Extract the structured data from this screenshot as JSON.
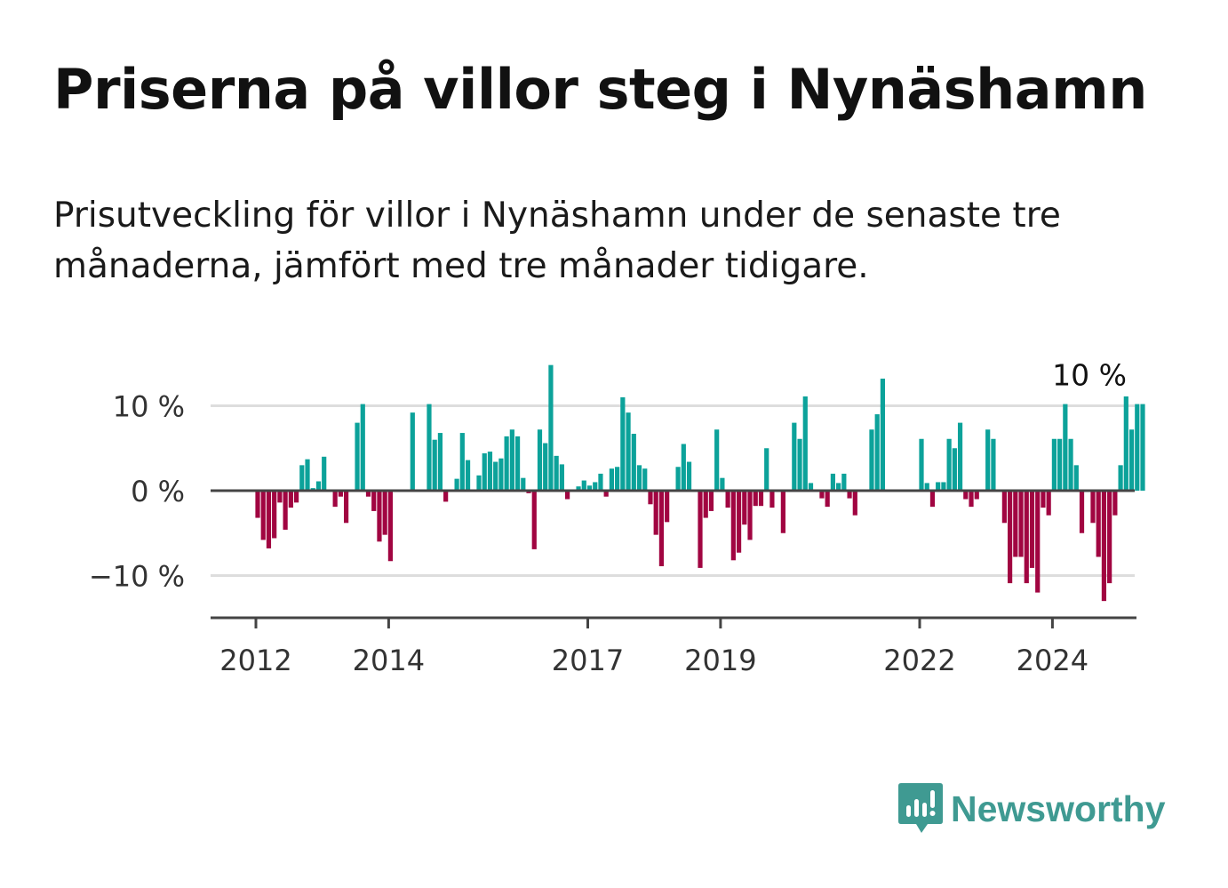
{
  "title": "Priserna på villor steg i Nynäshamn",
  "subtitle": "Prisutveckling för villor i Nynäshamn under de senaste tre månaderna, jämfört med tre månader tidigare.",
  "brand": {
    "name": "Newsworthy",
    "color": "#3f9a92",
    "icon": "newsworthy-logo-icon"
  },
  "colors": {
    "positive": "#0ca29a",
    "negative": "#a10541",
    "grid": "#dddddd",
    "axis": "#444444"
  },
  "chart_data": {
    "type": "bar",
    "title": "",
    "xlabel": "",
    "ylabel": "",
    "ylim": [
      -15,
      15
    ],
    "yticks": [
      10,
      0,
      -10
    ],
    "ytick_labels": [
      "10 %",
      "0 %",
      "−10 %"
    ],
    "xticks": [
      {
        "year": 2012,
        "label": "2012"
      },
      {
        "year": 2014,
        "label": "2014"
      },
      {
        "year": 2017,
        "label": "2017"
      },
      {
        "year": 2019,
        "label": "2019"
      },
      {
        "year": 2022,
        "label": "2022"
      },
      {
        "year": 2024,
        "label": "2024"
      }
    ],
    "start": {
      "year": 2012,
      "month": 1
    },
    "unit": "%",
    "last_value_label": "10 %",
    "values": [
      -3.2,
      -5.8,
      -6.8,
      -5.6,
      -1.4,
      -4.6,
      -2.0,
      -1.4,
      3.0,
      3.7,
      0.3,
      1.1,
      4.0,
      0,
      -1.9,
      -0.7,
      -3.8,
      0,
      8.0,
      10.2,
      -0.7,
      -2.4,
      -6.0,
      -5.2,
      -8.3,
      0,
      0,
      0,
      9.2,
      0,
      0,
      10.2,
      6.0,
      6.8,
      -1.3,
      0,
      1.4,
      6.8,
      3.6,
      0,
      1.8,
      4.4,
      4.6,
      3.4,
      3.8,
      6.4,
      7.2,
      6.4,
      1.5,
      -0.3,
      -6.9,
      7.2,
      5.6,
      14.8,
      4.1,
      3.1,
      -1.0,
      0,
      0.5,
      1.2,
      0.6,
      1.0,
      2.0,
      -0.7,
      2.6,
      2.8,
      11.0,
      9.2,
      6.7,
      3.0,
      2.6,
      -1.6,
      -5.2,
      -8.9,
      -3.7,
      0,
      2.8,
      5.5,
      3.4,
      0,
      -9.1,
      -3.2,
      -2.4,
      7.2,
      1.5,
      -2.0,
      -8.2,
      -7.3,
      -4.0,
      -5.8,
      -1.8,
      -1.8,
      5.0,
      -2.0,
      0,
      -5.0,
      0,
      8.0,
      6.1,
      11.1,
      0.9,
      0,
      -0.9,
      -1.9,
      2.0,
      0.9,
      2.0,
      -0.9,
      -2.9,
      0,
      0,
      7.2,
      9.0,
      13.2,
      0,
      0,
      0,
      0,
      0,
      0,
      6.1,
      0.9,
      -1.9,
      1.0,
      1.0,
      6.1,
      5.0,
      8.0,
      -1.0,
      -1.9,
      -1.0,
      0,
      7.2,
      6.1,
      0,
      -3.8,
      -10.9,
      -7.8,
      -7.8,
      -10.9,
      -9.1,
      -12.0,
      -2.0,
      -2.9,
      6.1,
      6.1,
      10.2,
      6.1,
      3.0,
      -5.0,
      0,
      -3.8,
      -7.8,
      -13.0,
      -10.9,
      -2.9,
      3.0,
      11.1,
      7.2,
      10.2,
      10.2
    ]
  }
}
